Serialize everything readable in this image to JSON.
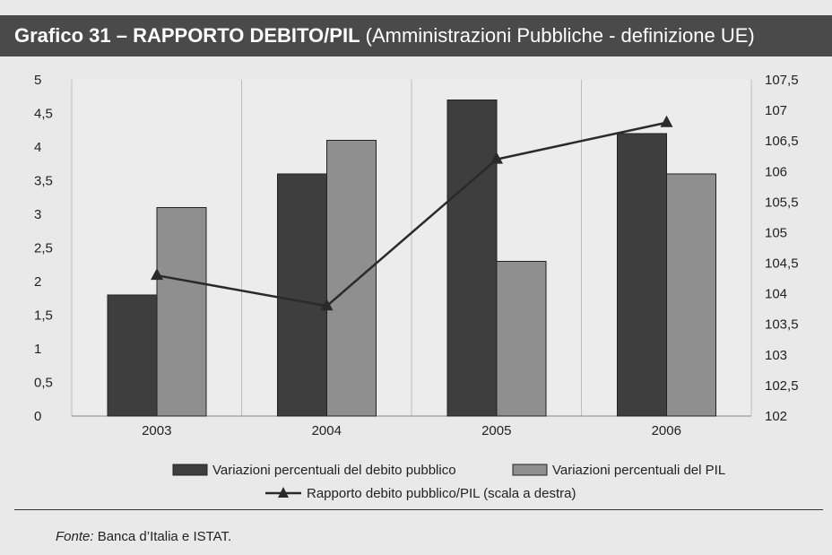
{
  "title": {
    "main": "Grafico 31 – RAPPORTO DEBITO/PIL",
    "sub": "(Amministrazioni Pubbliche - definizione UE)"
  },
  "chart_data": {
    "type": "bar",
    "categories": [
      "2003",
      "2004",
      "2005",
      "2006"
    ],
    "series": [
      {
        "name": "Variazioni percentuali del debito pubblico",
        "type": "bar",
        "axis": "left",
        "color": "#3e3e3e",
        "values": [
          1.8,
          3.6,
          4.7,
          4.2
        ]
      },
      {
        "name": "Variazioni percentuali del PIL",
        "type": "bar",
        "axis": "left",
        "color": "#8f8f8f",
        "values": [
          3.1,
          4.1,
          2.3,
          3.6
        ]
      },
      {
        "name": "Rapporto debito pubblico/PIL (scala a destra)",
        "type": "line",
        "axis": "right",
        "color": "#2a2a2a",
        "values": [
          104.3,
          103.8,
          106.2,
          106.8
        ]
      }
    ],
    "ylim_left": [
      0,
      5
    ],
    "yticks_left": [
      "0",
      "0,5",
      "1",
      "1,5",
      "2",
      "2,5",
      "3",
      "3,5",
      "4",
      "4,5",
      "5"
    ],
    "ylim_right": [
      102,
      107.5
    ],
    "yticks_right": [
      "102",
      "102,5",
      "103",
      "103,5",
      "104",
      "104,5",
      "105",
      "105,5",
      "106",
      "106,5",
      "107",
      "107,5"
    ],
    "grid": "vertical",
    "legend_position": "bottom"
  },
  "source": {
    "label": "Fonte:",
    "text": "Banca d’Italia e ISTAT."
  }
}
